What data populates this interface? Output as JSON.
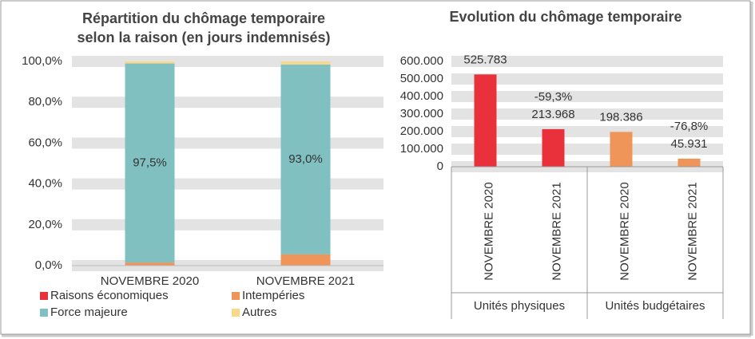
{
  "chart_data": [
    {
      "type": "bar",
      "stacked": true,
      "title": [
        "Répartition du chômage temporaire",
        "selon la raison (en jours indemnisés)"
      ],
      "categories": [
        "NOVEMBRE 2020",
        "NOVEMBRE 2021"
      ],
      "series": [
        {
          "name": "Raisons économiques",
          "color": "#e8313a",
          "values": [
            0,
            0
          ]
        },
        {
          "name": "Intempéries",
          "color": "#f0955a",
          "values": [
            1.5,
            5.5
          ]
        },
        {
          "name": "Force majeure",
          "color": "#80c0c0",
          "values": [
            97.5,
            93.0
          ],
          "value_labels": [
            "97,5%",
            "93,0%"
          ]
        },
        {
          "name": "Autres",
          "color": "#f8d98c",
          "values": [
            1.0,
            1.5
          ]
        }
      ],
      "ylim": [
        0,
        100
      ],
      "yticks": [
        {
          "value": 0,
          "label": "0,0%"
        },
        {
          "value": 20,
          "label": "20,0%"
        },
        {
          "value": 40,
          "label": "40,0%"
        },
        {
          "value": 60,
          "label": "60,0%"
        },
        {
          "value": 80,
          "label": "80,0%"
        },
        {
          "value": 100,
          "label": "100,0%"
        }
      ],
      "grid": true
    },
    {
      "type": "bar",
      "title": "Evolution du chômage temporaire",
      "categories": [
        "NOVEMBRE 2020",
        "NOVEMBRE 2021",
        "NOVEMBRE 2020",
        "NOVEMBRE 2021"
      ],
      "group_labels": [
        "Unités physiques",
        "Unités budgétaires"
      ],
      "values": [
        525783,
        213968,
        198386,
        45931
      ],
      "value_labels": [
        "525.783",
        "213.968",
        "198.386",
        "45.931"
      ],
      "change_labels": [
        null,
        "-59,3%",
        null,
        "-76,8%"
      ],
      "colors": [
        "#e8313a",
        "#e8313a",
        "#f0955a",
        "#f0955a"
      ],
      "ylim": [
        0,
        600000
      ],
      "yticks": [
        0,
        {
          "value": 100000,
          "label": "100.000"
        },
        {
          "value": 200000,
          "label": "200.000"
        },
        {
          "value": 300000,
          "label": "300.000"
        },
        {
          "value": 400000,
          "label": "400.000"
        },
        {
          "value": 500000,
          "label": "500.000"
        },
        {
          "value": 600000,
          "label": "600.000"
        }
      ],
      "grid": true
    }
  ]
}
